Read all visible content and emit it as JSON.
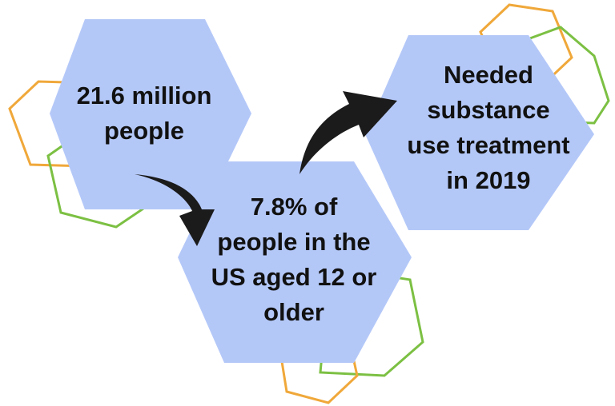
{
  "colors": {
    "hex_fill": "#b4c8f8",
    "outline_orange": "#f0a83a",
    "outline_green": "#7cc043",
    "arrow": "#1b1b1b",
    "text": "#111111"
  },
  "steps": [
    {
      "text": "21.6 million\npeople"
    },
    {
      "text": "7.8% of\npeople in the\nUS aged 12 or\nolder"
    },
    {
      "text": "Needed\nsubstance\nuse treatment\nin 2019"
    }
  ]
}
